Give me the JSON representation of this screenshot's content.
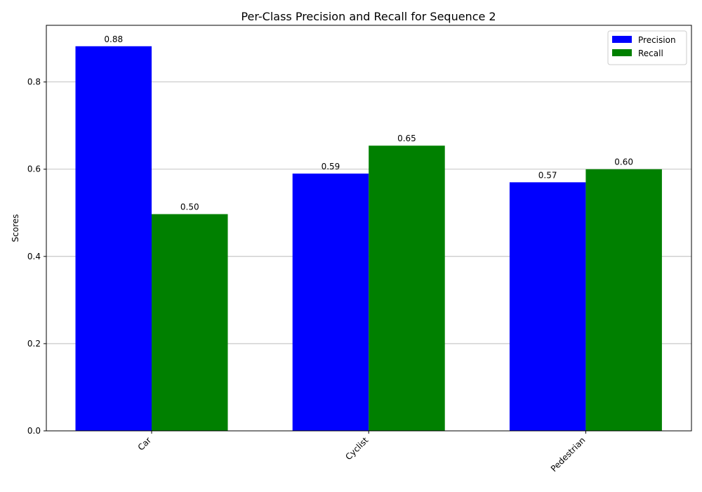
{
  "chart_data": {
    "type": "bar",
    "title": "Per-Class Precision and Recall for Sequence 2",
    "xlabel": "",
    "ylabel": "Scores",
    "categories": [
      "Car",
      "Cyclist",
      "Pedestrian"
    ],
    "series": [
      {
        "name": "Precision",
        "values": [
          0.882,
          0.59,
          0.57
        ],
        "labels": [
          "0.88",
          "0.59",
          "0.57"
        ],
        "color": "#0000ff"
      },
      {
        "name": "Recall",
        "values": [
          0.497,
          0.654,
          0.6
        ],
        "labels": [
          "0.50",
          "0.65",
          "0.60"
        ],
        "color": "#008000"
      }
    ],
    "ylim": [
      0,
      0.93
    ],
    "yticks": [
      0.0,
      0.2,
      0.4,
      0.6,
      0.8
    ],
    "ytick_labels": [
      "0.0",
      "0.2",
      "0.4",
      "0.6",
      "0.8"
    ],
    "grid": "y",
    "legend_position": "top-right"
  }
}
